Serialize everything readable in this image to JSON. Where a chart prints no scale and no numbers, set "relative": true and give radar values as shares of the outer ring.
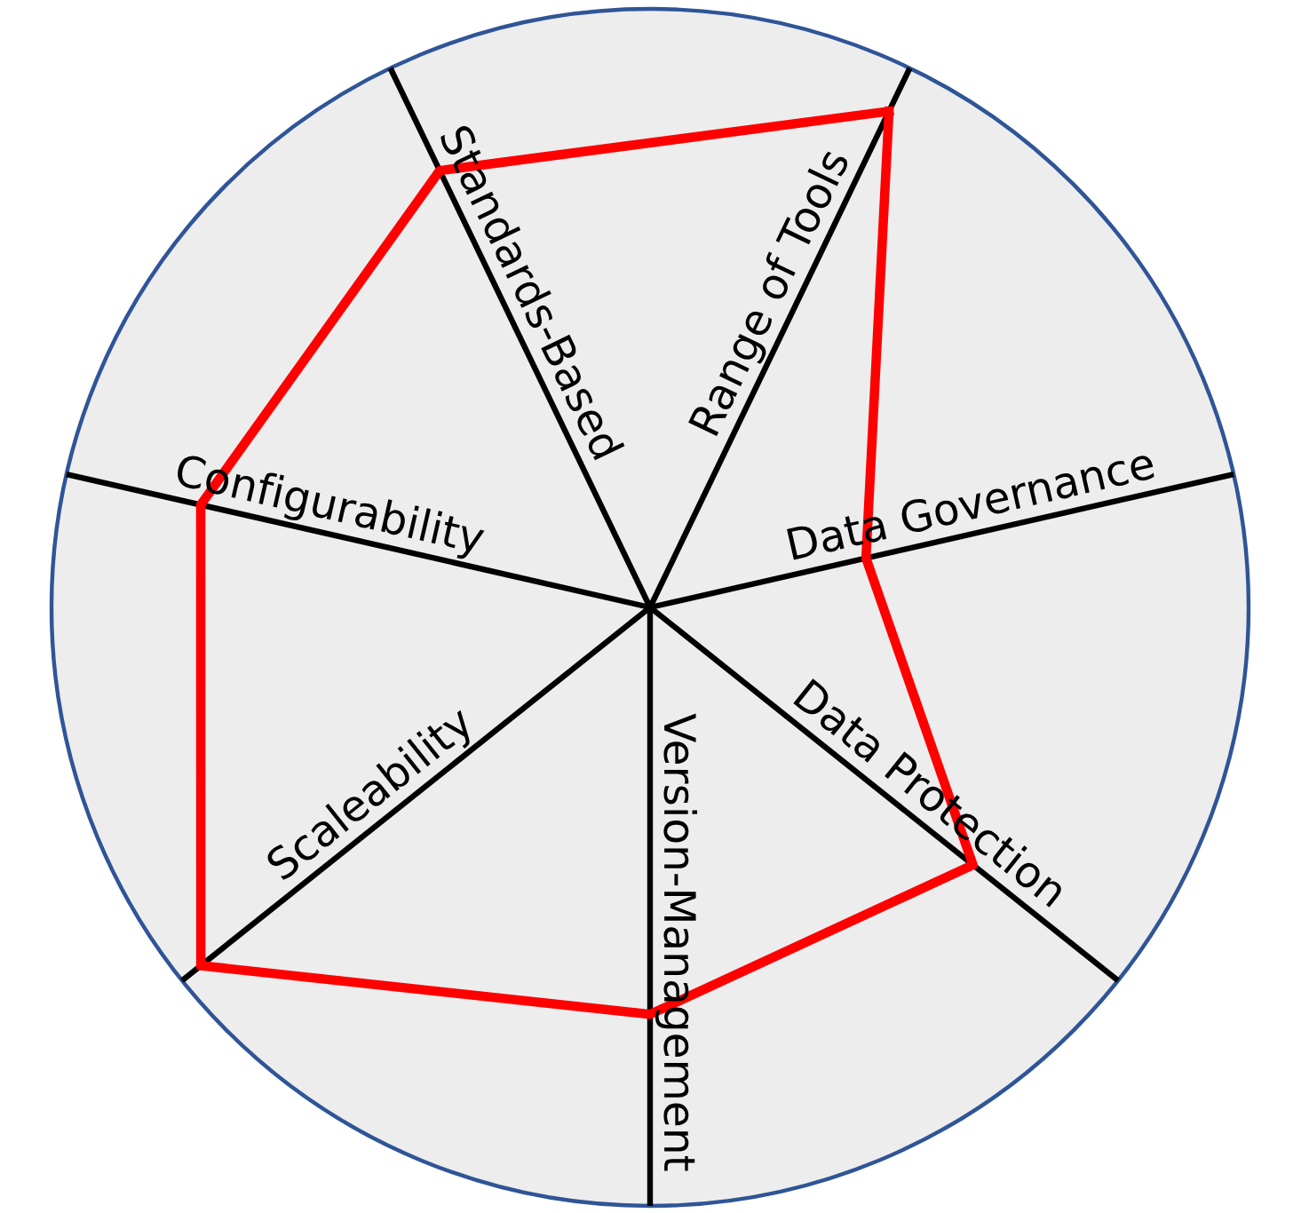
{
  "chart_data": {
    "type": "radar",
    "relative": true,
    "categories": [
      "Range of Tools",
      "Data Governance",
      "Data Protection",
      "Version-Management",
      "Scaleability",
      "Configurability",
      "Standards-Based"
    ],
    "series": [
      {
        "color": "#ff0000",
        "values": [
          0.92,
          0.37,
          0.69,
          0.68,
          0.96,
          0.77,
          0.81
        ]
      }
    ]
  }
}
